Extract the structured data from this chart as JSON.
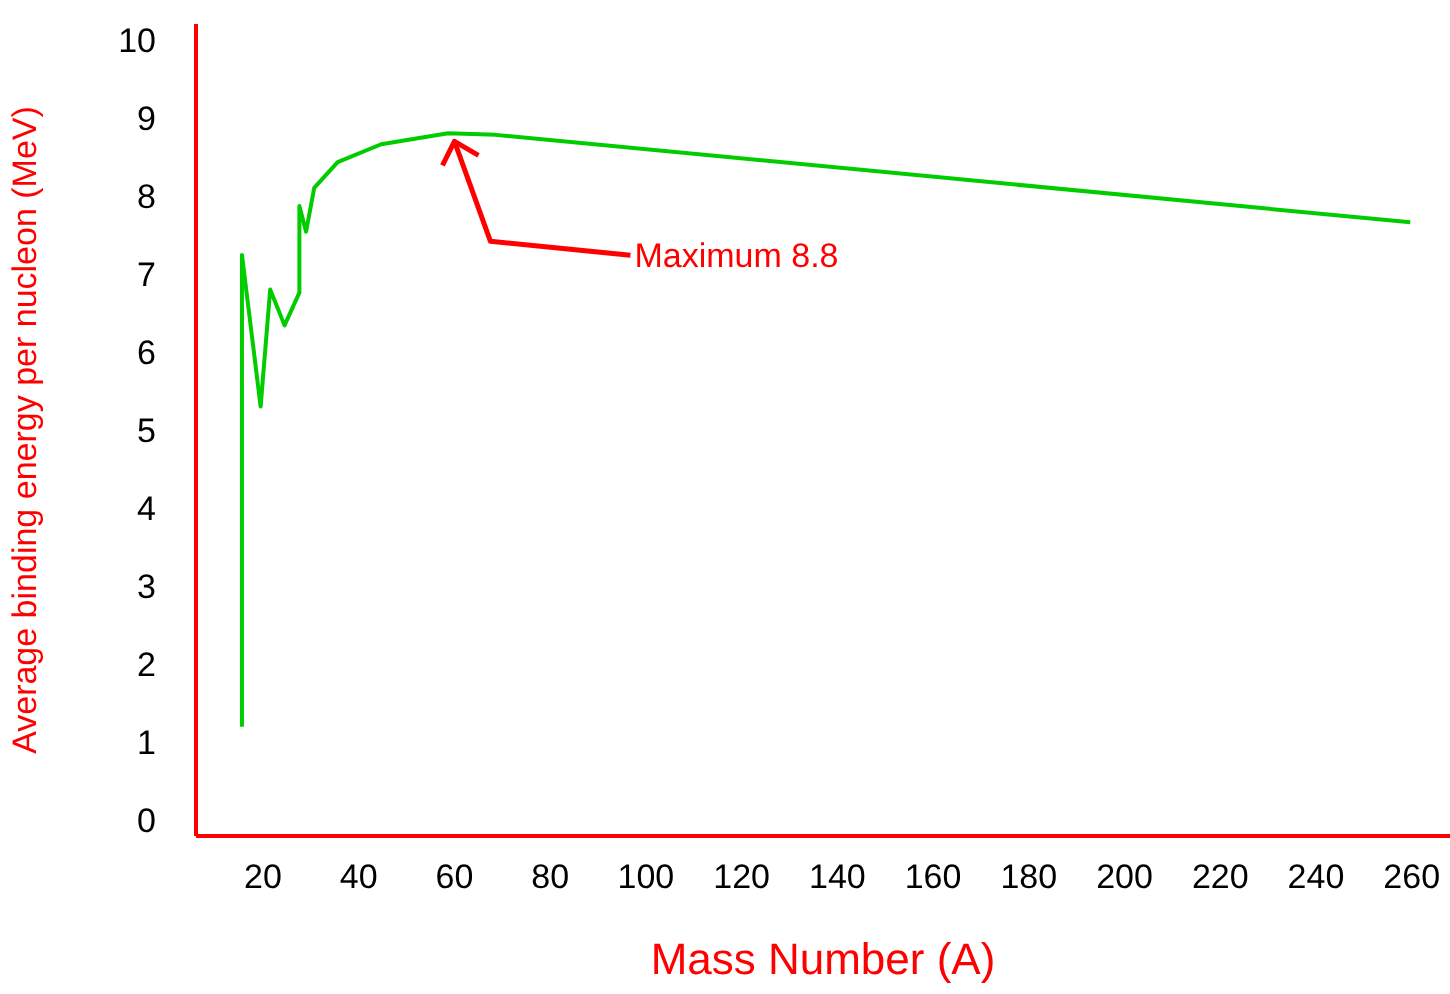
{
  "chart_data": {
    "type": "line",
    "xlabel": "Mass Number (A)",
    "ylabel": "Average binding energy per nucleon (MeV)",
    "x": [
      15.6,
      15.6,
      19.5,
      21.5,
      24.5,
      27.6,
      27.6,
      29,
      30.7,
      35.6,
      44.7,
      58.7,
      68.6,
      259.7
    ],
    "series": [
      {
        "color": "#00cc00",
        "values": [
          1.2,
          7.24,
          5.3,
          6.8,
          6.34,
          6.76,
          7.87,
          7.54,
          8.1,
          8.43,
          8.66,
          8.8,
          8.78,
          7.66
        ]
      }
    ],
    "xlim": [
      6,
      268
    ],
    "xticks": [
      20,
      40,
      60,
      80,
      100,
      120,
      140,
      160,
      180,
      200,
      220,
      240,
      260
    ],
    "ylim": [
      -0.2,
      10.2
    ],
    "yticks": [
      0,
      1,
      2,
      3,
      4,
      5,
      6,
      7,
      8,
      9,
      10
    ],
    "annotations": [
      {
        "text": "Maximum 8.8",
        "x": 60,
        "y": 8.8
      }
    ],
    "grid": false,
    "legend": false,
    "marker": "none",
    "line_style": "solid"
  }
}
